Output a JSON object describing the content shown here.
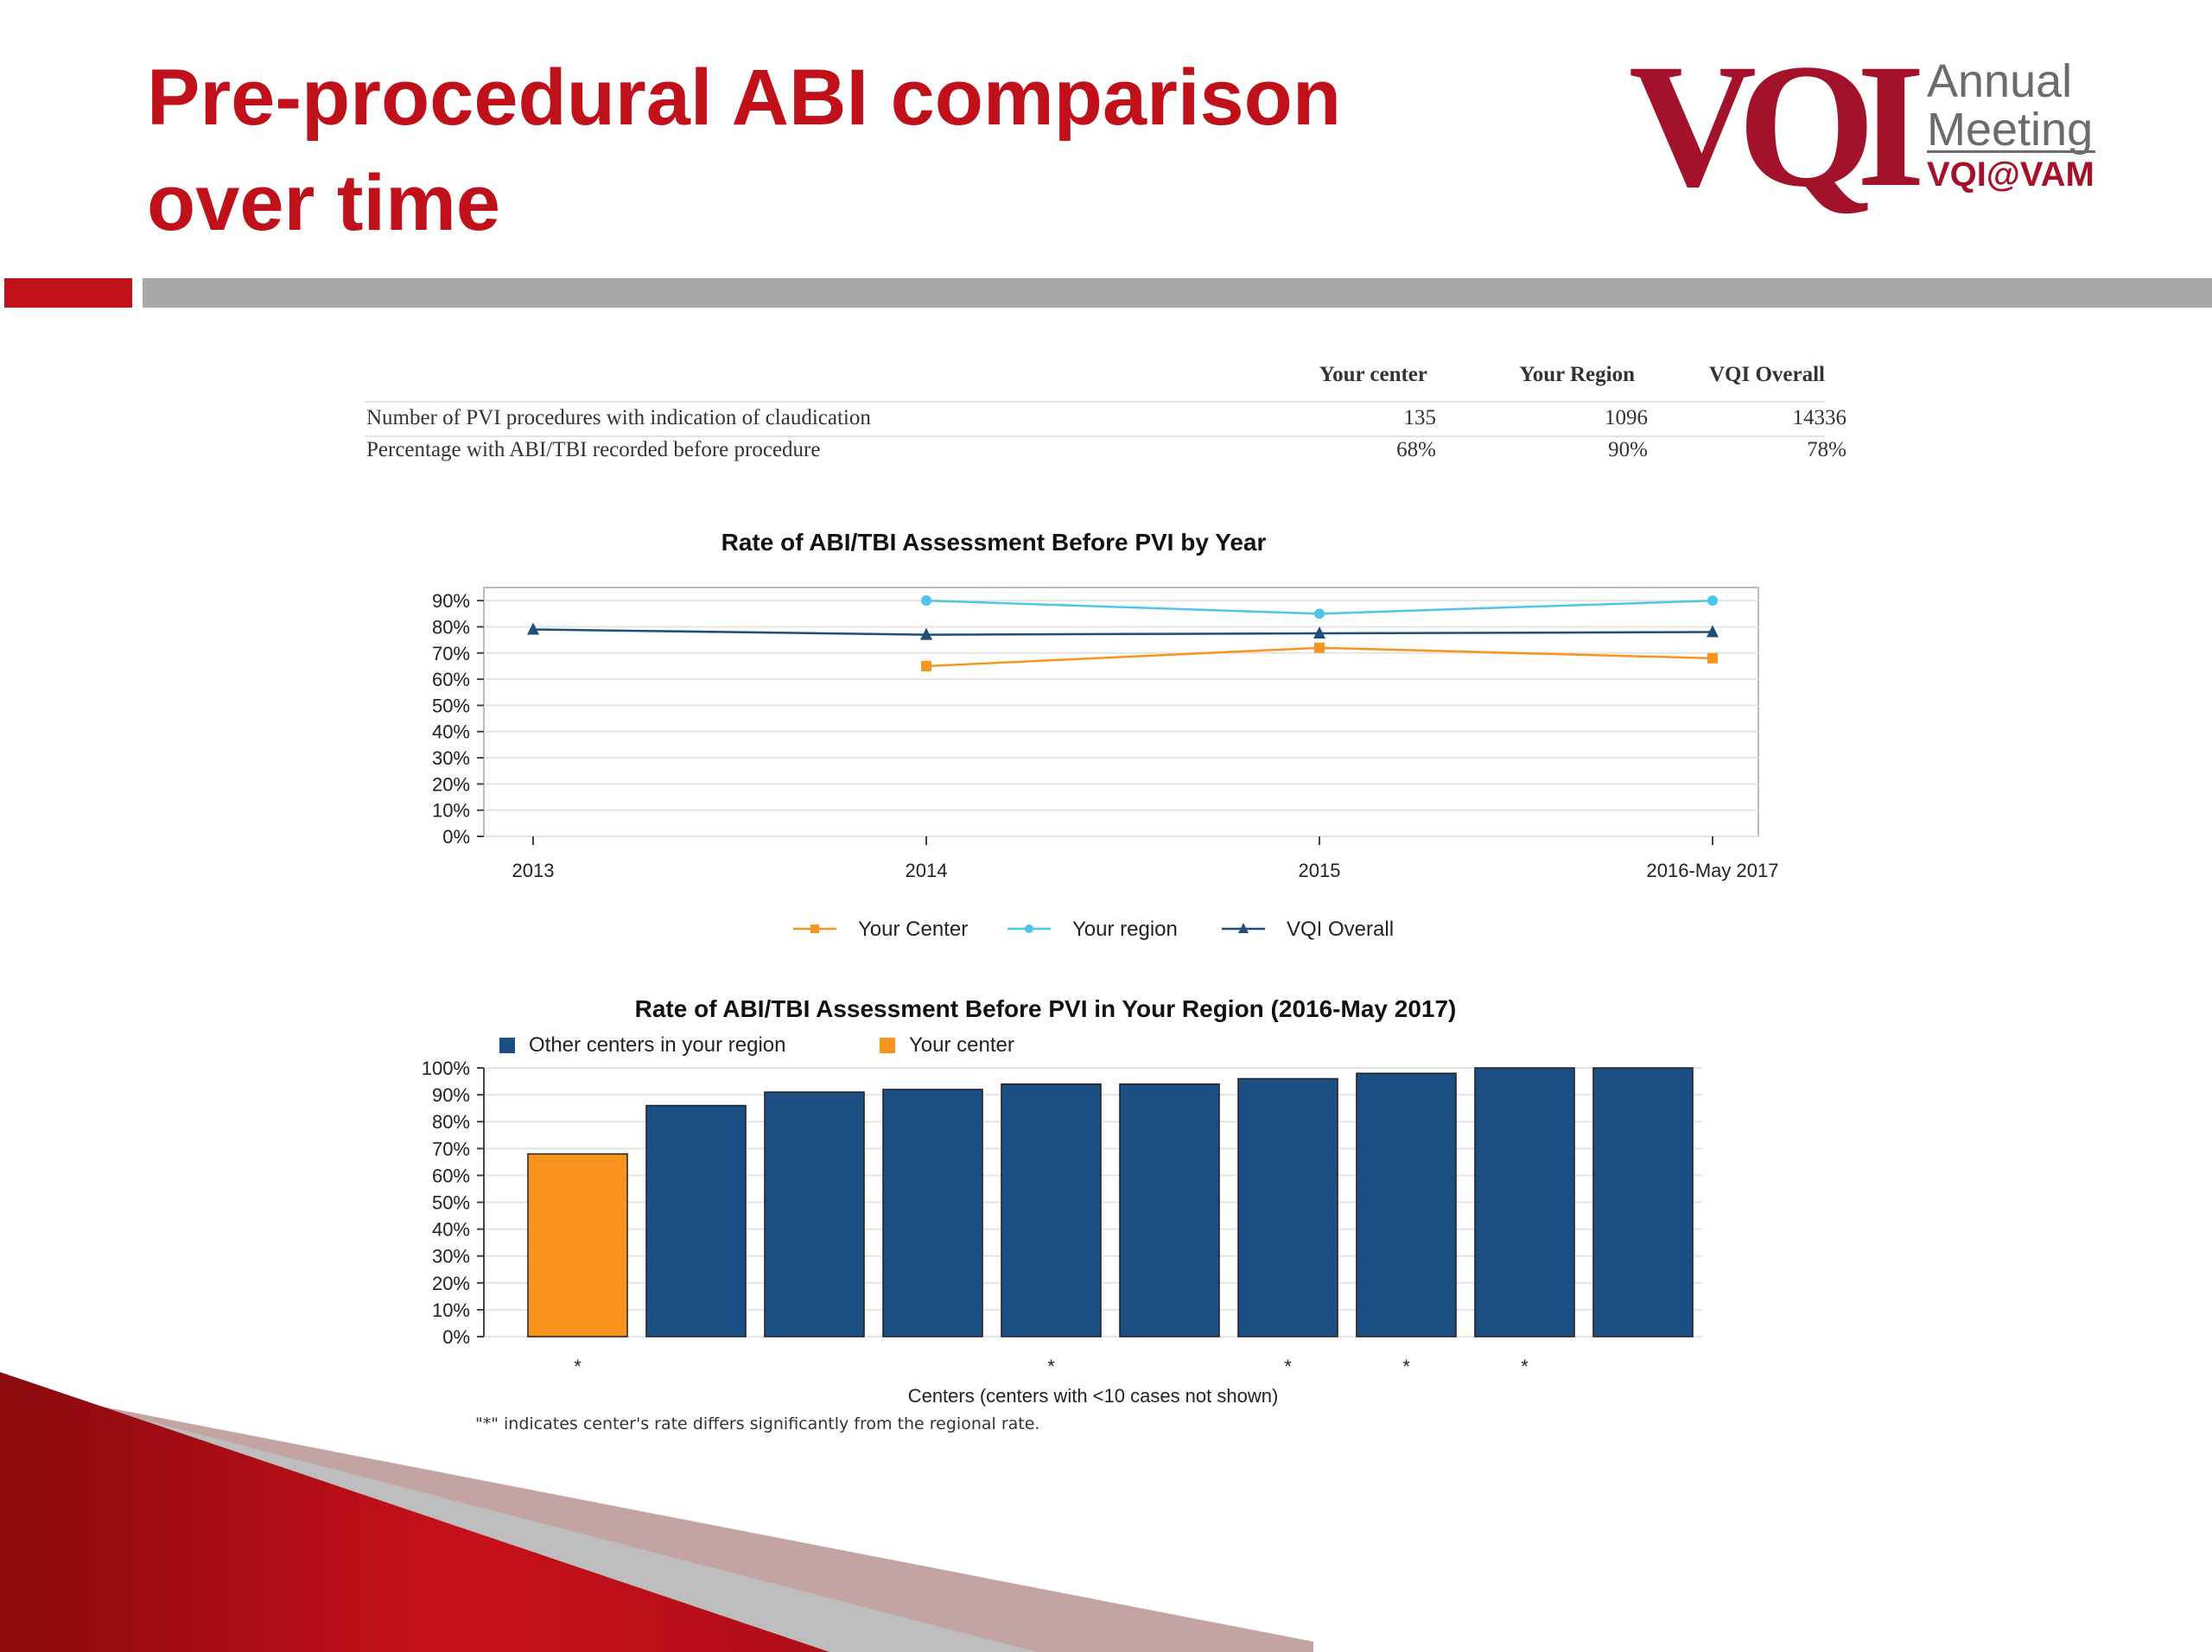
{
  "slide": {
    "title": "Pre-procedural ABI comparison over time",
    "accent_color": "#c0101a"
  },
  "logo": {
    "mark": "VQI",
    "line1": "Annual",
    "line2": "Meeting",
    "line3": "VQI@VAM",
    "color": "#a3122a"
  },
  "summary_table": {
    "columns": [
      "Your center",
      "Your Region",
      "VQI Overall"
    ],
    "rows": [
      {
        "label": "Number of PVI procedures with indication of claudication",
        "values": [
          "135",
          "1096",
          "14336"
        ]
      },
      {
        "label": "Percentage with ABI/TBI recorded before procedure",
        "values": [
          "68%",
          "90%",
          "78%"
        ]
      }
    ]
  },
  "chart_data": [
    {
      "type": "line",
      "title": "Rate of ABI/TBI Assessment Before PVI by Year",
      "categories": [
        "2013",
        "2014",
        "2015",
        "2016-May 2017"
      ],
      "y_ticks": [
        "0%",
        "10%",
        "20%",
        "30%",
        "40%",
        "50%",
        "60%",
        "70%",
        "80%",
        "90%"
      ],
      "ylim": [
        0,
        95
      ],
      "grid": true,
      "legend_position": "bottom",
      "series": [
        {
          "name": "Your Center",
          "color": "#f7941d",
          "marker": "square",
          "values": [
            null,
            65,
            72,
            68
          ]
        },
        {
          "name": "Your region",
          "color": "#4fc3e8",
          "marker": "circle",
          "values": [
            null,
            90,
            85,
            90
          ]
        },
        {
          "name": "VQI Overall",
          "color": "#1f4e79",
          "marker": "triangle",
          "values": [
            79,
            77,
            77.5,
            78
          ]
        }
      ]
    },
    {
      "type": "bar",
      "title": "Rate of ABI/TBI Assessment Before PVI in Your Region (2016-May 2017)",
      "xlabel": "Centers (centers with <10 cases not shown)",
      "y_ticks": [
        "0%",
        "10%",
        "20%",
        "30%",
        "40%",
        "50%",
        "60%",
        "70%",
        "80%",
        "90%",
        "100%"
      ],
      "ylim": [
        0,
        100
      ],
      "grid": true,
      "legend_position": "top-left",
      "legend": [
        {
          "name": "Other centers in your region",
          "color": "#1b4f84"
        },
        {
          "name": "Your center",
          "color": "#f7941d"
        }
      ],
      "bars": [
        {
          "value": 68,
          "group": "Your center",
          "significant": true
        },
        {
          "value": 86,
          "group": "Other centers in your region",
          "significant": false
        },
        {
          "value": 91,
          "group": "Other centers in your region",
          "significant": false
        },
        {
          "value": 92,
          "group": "Other centers in your region",
          "significant": false
        },
        {
          "value": 94,
          "group": "Other centers in your region",
          "significant": true
        },
        {
          "value": 94,
          "group": "Other centers in your region",
          "significant": false
        },
        {
          "value": 96,
          "group": "Other centers in your region",
          "significant": true
        },
        {
          "value": 98,
          "group": "Other centers in your region",
          "significant": true
        },
        {
          "value": 100,
          "group": "Other centers in your region",
          "significant": true
        },
        {
          "value": 100,
          "group": "Other centers in your region",
          "significant": false
        }
      ],
      "significance_marker": "*",
      "footnote": "\"*\" indicates center's rate differs significantly from the regional rate."
    }
  ]
}
